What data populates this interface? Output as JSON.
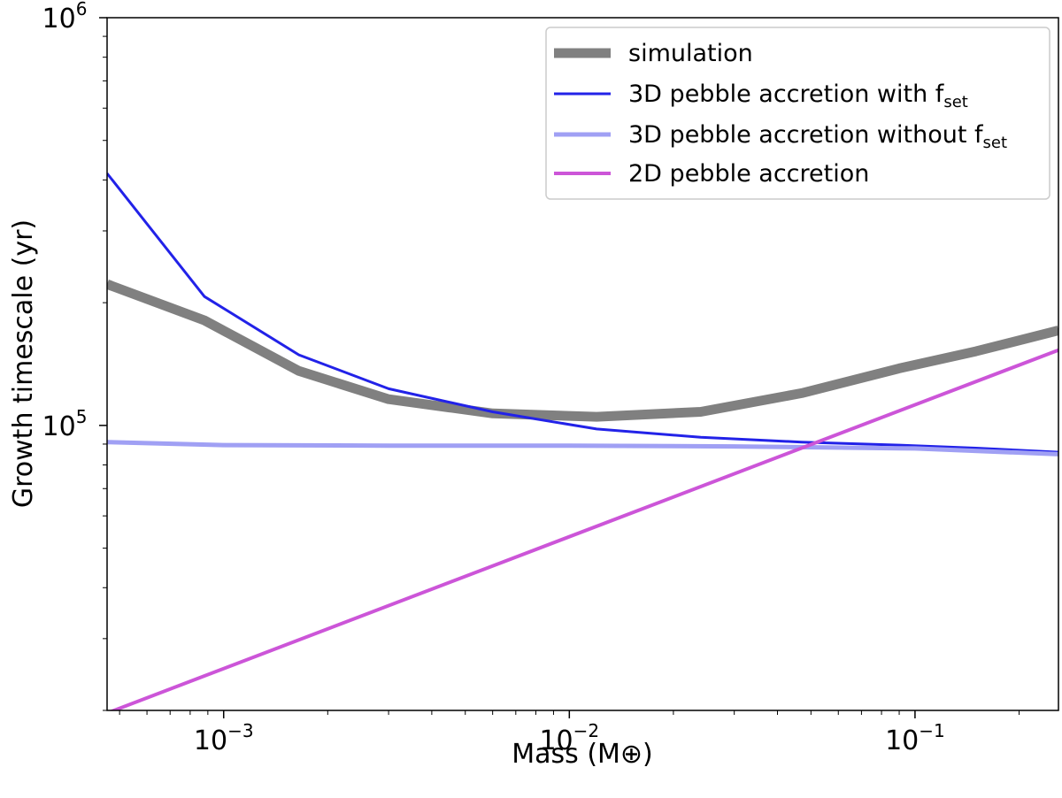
{
  "chart_data": {
    "type": "line",
    "xscale": "log",
    "yscale": "log",
    "xlabel": "Mass (M⊕)",
    "ylabel": "Growth timescale (yr)",
    "xlim": [
      0.00046,
      0.26
    ],
    "ylim": [
      20000,
      1000000
    ],
    "x_ticks": [
      {
        "value": 0.001,
        "base": "10",
        "exp": "−3"
      },
      {
        "value": 0.01,
        "base": "10",
        "exp": "−2"
      },
      {
        "value": 0.1,
        "base": "10",
        "exp": "−1"
      }
    ],
    "y_ticks": [
      {
        "value": 100000,
        "base": "10",
        "exp": "5"
      },
      {
        "value": 1000000,
        "base": "10",
        "exp": "6"
      }
    ],
    "legend_position": "top-right",
    "grid": false,
    "series": [
      {
        "name": "simulation",
        "color": "#808080",
        "width": 11,
        "x": [
          0.00046,
          0.00088,
          0.00165,
          0.003,
          0.006,
          0.012,
          0.024,
          0.047,
          0.09,
          0.15,
          0.26
        ],
        "y": [
          222000,
          181000,
          136000,
          116000,
          107000,
          105000,
          108000,
          120000,
          138000,
          152000,
          171000
        ]
      },
      {
        "name": "3D pebble accretion with f",
        "name_sub": "set",
        "color": "#2222e8",
        "width": 3,
        "x": [
          0.00046,
          0.00088,
          0.00165,
          0.003,
          0.006,
          0.012,
          0.024,
          0.047,
          0.09,
          0.15,
          0.26
        ],
        "y": [
          415000,
          207000,
          149000,
          123000,
          108000,
          98000,
          93500,
          91000,
          89500,
          88000,
          86000
        ]
      },
      {
        "name": "3D pebble accretion without f",
        "name_sub": "set",
        "color": "#a0a0f4",
        "width": 5,
        "x": [
          0.00046,
          0.001,
          0.003,
          0.01,
          0.03,
          0.1,
          0.26
        ],
        "y": [
          91000,
          89500,
          89200,
          89200,
          88800,
          87800,
          85000
        ]
      },
      {
        "name": "2D pebble accretion",
        "color": "#cc55d8",
        "width": 4,
        "x": [
          0.00046,
          0.26
        ],
        "y": [
          19700,
          153000
        ]
      }
    ]
  }
}
